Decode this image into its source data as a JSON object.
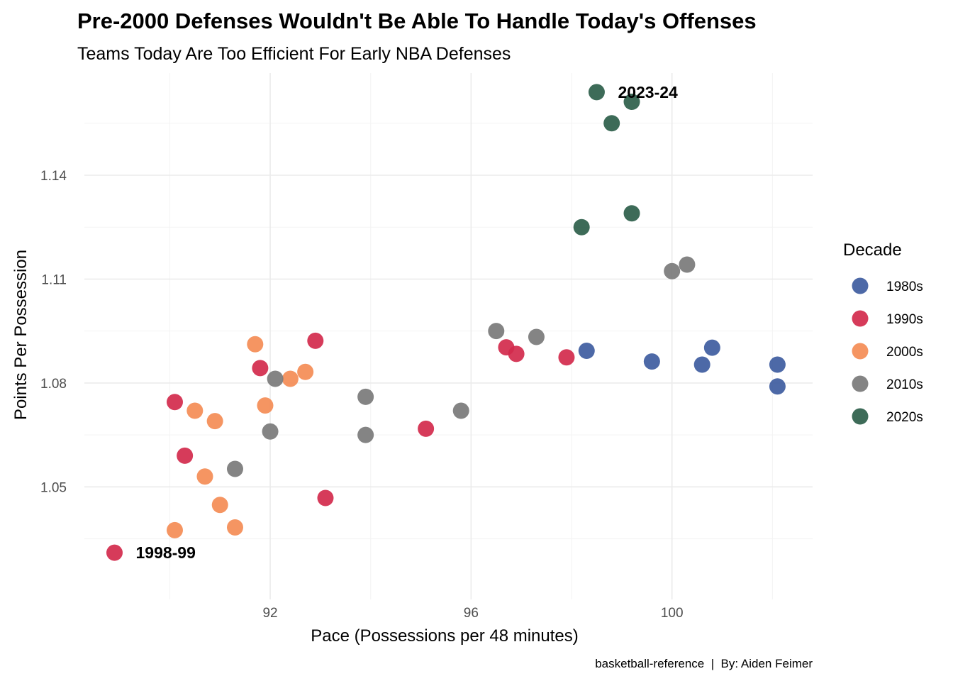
{
  "chart_data": {
    "type": "scatter",
    "title": "Pre-2000 Defenses Wouldn't Be Able To Handle Today's Offenses",
    "subtitle": "Teams Today Are Too Efficient For Early NBA Defenses",
    "xlabel": "Pace (Possessions per 48 minutes)",
    "ylabel": "Points Per Possession",
    "caption": "basketball-reference  |  By: Aiden Feimer",
    "xlim": [
      88.3,
      102.8
    ],
    "ylim": [
      1.0175,
      1.1695
    ],
    "x_ticks": [
      92,
      96,
      100
    ],
    "x_tick_labels": [
      "92",
      "96",
      "100"
    ],
    "y_ticks": [
      1.05,
      1.08,
      1.11,
      1.14
    ],
    "y_tick_labels": [
      "1.05",
      "1.08",
      "1.11",
      "1.14"
    ],
    "grid": true,
    "legend": {
      "title": "Decade",
      "position": "right"
    },
    "series": [
      {
        "name": "1980s",
        "color": "#3e5c9f",
        "points": [
          [
            98.3,
            1.0893
          ],
          [
            99.6,
            1.0862
          ],
          [
            100.6,
            1.0853
          ],
          [
            100.8,
            1.0902
          ],
          [
            102.1,
            1.0853
          ],
          [
            102.1,
            1.079
          ]
        ]
      },
      {
        "name": "1990s",
        "color": "#d22a4c",
        "points": [
          [
            88.9,
            1.031
          ],
          [
            90.1,
            1.0745
          ],
          [
            90.3,
            1.059
          ],
          [
            91.8,
            1.0843
          ],
          [
            92.9,
            1.0922
          ],
          [
            93.1,
            1.0468
          ],
          [
            95.1,
            1.0668
          ],
          [
            96.7,
            1.0903
          ],
          [
            96.9,
            1.0884
          ],
          [
            97.9,
            1.0874
          ]
        ]
      },
      {
        "name": "2000s",
        "color": "#f48c55",
        "points": [
          [
            90.1,
            1.0375
          ],
          [
            90.5,
            1.072
          ],
          [
            90.7,
            1.053
          ],
          [
            90.9,
            1.069
          ],
          [
            91.0,
            1.0448
          ],
          [
            91.3,
            1.0383
          ],
          [
            91.7,
            1.0912
          ],
          [
            91.9,
            1.0735
          ],
          [
            92.4,
            1.0812
          ],
          [
            92.7,
            1.0832
          ]
        ]
      },
      {
        "name": "2010s",
        "color": "#7a7a7a",
        "points": [
          [
            91.3,
            1.0552
          ],
          [
            92.0,
            1.066
          ],
          [
            92.1,
            1.0812
          ],
          [
            93.9,
            1.065
          ],
          [
            93.9,
            1.076
          ],
          [
            95.8,
            1.072
          ],
          [
            96.5,
            1.095
          ],
          [
            97.3,
            1.0933
          ],
          [
            100.0,
            1.1123
          ],
          [
            100.3,
            1.1142
          ]
        ]
      },
      {
        "name": "2020s",
        "color": "#2d5e4a",
        "points": [
          [
            98.2,
            1.125
          ],
          [
            98.5,
            1.164
          ],
          [
            98.8,
            1.155
          ],
          [
            99.2,
            1.1612
          ],
          [
            99.2,
            1.129
          ]
        ]
      }
    ],
    "annotations": [
      {
        "text": "2023-24",
        "x": 98.5,
        "y": 1.164
      },
      {
        "text": "1998-99",
        "x": 88.9,
        "y": 1.031
      }
    ]
  }
}
